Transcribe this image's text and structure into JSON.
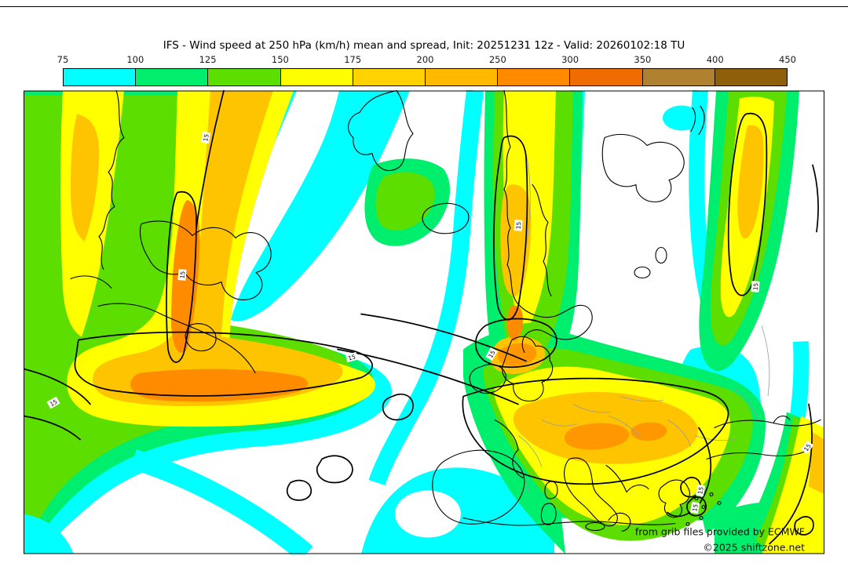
{
  "title": "IFS - Wind speed at 250 hPa (km/h) mean and spread, Init: 20251231 12z - Valid: 20260102:18 TU",
  "colorbar": {
    "tick_labels": [
      "75",
      "100",
      "125",
      "150",
      "175",
      "200",
      "250",
      "300",
      "350",
      "400",
      "450"
    ],
    "segments": [
      {
        "range": "75-100",
        "color": "#00FFFF"
      },
      {
        "range": "100-125",
        "color": "#00EE6E"
      },
      {
        "range": "125-150",
        "color": "#5CDE00"
      },
      {
        "range": "150-175",
        "color": "#FFFF00"
      },
      {
        "range": "175-200",
        "color": "#FFD200"
      },
      {
        "range": "200-250",
        "color": "#FFBA00"
      },
      {
        "range": "250-300",
        "color": "#FF8A00"
      },
      {
        "range": "300-350",
        "color": "#EF6C00"
      },
      {
        "range": "350-400",
        "color": "#B0812F"
      },
      {
        "range": "400-450",
        "color": "#8F6009"
      }
    ]
  },
  "map": {
    "spread_contour_label": "15",
    "attribution_line1": "from grib files provided by ECMWF",
    "attribution_line2": "©2025 shiftzone.net"
  },
  "chart_data": {
    "type": "heatmap",
    "title": "IFS - Wind speed at 250 hPa (km/h) mean and spread, Init: 20251231 12z - Valid: 20260102:18 TU",
    "model": "IFS",
    "variable": "Wind speed at 250 hPa",
    "unit": "km/h",
    "statistic": "mean and spread",
    "init": "20251231 12z",
    "valid": "20260102:18 TU",
    "levels": [
      75,
      100,
      125,
      150,
      175,
      200,
      250,
      300,
      350,
      400,
      450
    ],
    "level_colors": [
      "#00FFFF",
      "#00EE6E",
      "#5CDE00",
      "#FFFF00",
      "#FFD200",
      "#FFBA00",
      "#FF8A00",
      "#EF6C00",
      "#B0812F",
      "#8F6009"
    ],
    "spread_contour_value": 15,
    "legend_position": "top",
    "region": "North Atlantic - Europe"
  }
}
